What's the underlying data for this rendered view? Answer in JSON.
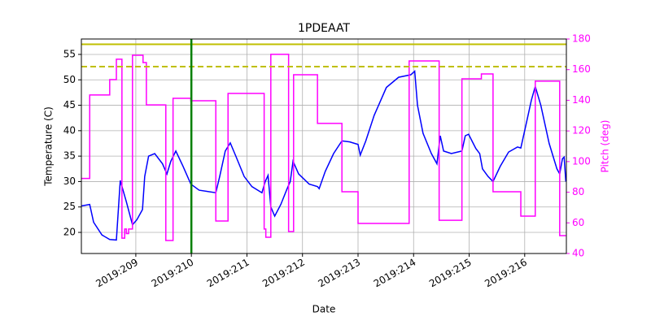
{
  "chart_data": {
    "type": "line",
    "title": "1PDEAAT",
    "x_label": "Date",
    "y_label": "Temperature (C)",
    "y2_label": "Pitch (deg)",
    "xlim": [
      208.02,
      216.75
    ],
    "xticks": [
      {
        "value": 209,
        "label": "2019:209"
      },
      {
        "value": 210,
        "label": "2019:210"
      },
      {
        "value": 211,
        "label": "2019:211"
      },
      {
        "value": 212,
        "label": "2019:212"
      },
      {
        "value": 213,
        "label": "2019:213"
      },
      {
        "value": 214,
        "label": "2019:214"
      },
      {
        "value": 215,
        "label": "2019:215"
      },
      {
        "value": 216,
        "label": "2019:216"
      }
    ],
    "ylim": [
      15.85,
      58.03
    ],
    "yticks": [
      20,
      25,
      30,
      35,
      40,
      45,
      50,
      55
    ],
    "y2lim": [
      40,
      180
    ],
    "y2ticks": [
      40,
      60,
      80,
      100,
      120,
      140,
      160,
      180
    ],
    "y2_color": "#ff00ff",
    "grid": true,
    "series": [
      {
        "color": "#0000ff",
        "x": [
          208.02,
          208.17,
          208.24,
          208.39,
          208.53,
          208.65,
          208.72,
          208.83,
          208.94,
          209.02,
          209.12,
          209.16,
          209.23,
          209.34,
          209.48,
          209.56,
          209.63,
          209.72,
          209.85,
          209.99,
          210.14,
          210.44,
          210.51,
          210.61,
          210.7,
          210.8,
          210.95,
          211.09,
          211.27,
          211.33,
          211.38,
          211.43,
          211.5,
          211.61,
          211.72,
          211.78,
          211.83,
          211.93,
          212.12,
          212.27,
          212.3,
          212.41,
          212.56,
          212.71,
          212.85,
          213.0,
          213.04,
          213.14,
          213.29,
          213.51,
          213.73,
          213.95,
          214.02,
          214.07,
          214.17,
          214.32,
          214.42,
          214.48,
          214.54,
          214.68,
          214.87,
          214.93,
          214.99,
          215.12,
          215.19,
          215.24,
          215.34,
          215.43,
          215.56,
          215.71,
          215.87,
          215.93,
          216.04,
          216.12,
          216.19,
          216.29,
          216.44,
          216.58,
          216.63,
          216.68,
          216.71,
          216.74
        ],
        "values": [
          25.2,
          25.5,
          22,
          19.5,
          18.6,
          18.5,
          30.2,
          26,
          21.5,
          22.5,
          24.5,
          31,
          35,
          35.5,
          33.5,
          31.5,
          34,
          36,
          33,
          29.5,
          28.3,
          27.8,
          31,
          36,
          37.6,
          35,
          31,
          29,
          27.8,
          30,
          31.2,
          25,
          23.2,
          25.5,
          28.5,
          30,
          34,
          31.5,
          29.5,
          29,
          28.6,
          32,
          35.5,
          38,
          37.8,
          37.3,
          35.2,
          38,
          43,
          48.5,
          50.5,
          51,
          51.7,
          45,
          39.5,
          35.5,
          33.5,
          39,
          36,
          35.5,
          36,
          39,
          39.3,
          36.5,
          35.5,
          32.5,
          31,
          30,
          33,
          35.8,
          36.8,
          36.6,
          42,
          46,
          48.7,
          45,
          37.5,
          32.5,
          31.5,
          34.5,
          34.8,
          30
        ]
      },
      {
        "color": "#ff00ff",
        "axis": "y2",
        "x": [
          208.02,
          208.17,
          208.17,
          208.53,
          208.53,
          208.65,
          208.65,
          208.75,
          208.75,
          208.8,
          208.8,
          208.83,
          208.83,
          208.87,
          208.87,
          208.94,
          208.94,
          209.13,
          209.13,
          209.19,
          209.19,
          209.54,
          209.54,
          209.67,
          209.67,
          209.99,
          209.99,
          210.44,
          210.44,
          210.66,
          210.66,
          211.31,
          211.31,
          211.34,
          211.34,
          211.43,
          211.43,
          211.46,
          211.46,
          211.75,
          211.75,
          211.84,
          211.84,
          212.27,
          212.27,
          212.71,
          212.71,
          213.0,
          213.0,
          213.92,
          213.92,
          214.46,
          214.46,
          214.87,
          214.87,
          215.22,
          215.22,
          215.43,
          215.43,
          215.93,
          215.93,
          216.19,
          216.19,
          216.63,
          216.63,
          216.74
        ],
        "values": [
          89,
          89,
          143.5,
          143.5,
          153.5,
          153.5,
          166.8,
          166.8,
          50,
          50,
          56,
          56,
          53,
          53,
          56,
          56,
          169.4,
          169.4,
          164.6,
          164.6,
          137,
          137,
          48.5,
          48.5,
          141.3,
          141.3,
          139.7,
          139.7,
          61.2,
          61.2,
          144.5,
          144.5,
          56,
          56,
          50.6,
          50.6,
          170,
          170,
          170,
          170,
          54.3,
          54.3,
          156.7,
          156.7,
          124.9,
          124.9,
          80.3,
          80.3,
          59.6,
          59.6,
          165.7,
          165.7,
          61.7,
          61.7,
          154,
          154,
          157.2,
          157.2,
          80.3,
          80.3,
          64.4,
          64.4,
          152.5,
          152.5,
          51.7,
          51.7
        ]
      }
    ],
    "hlines": [
      {
        "value": 57,
        "color": "#bfbf00",
        "style": "solid"
      },
      {
        "value": 52.6,
        "color": "#bfbf00",
        "style": "dashed"
      }
    ],
    "vlines": [
      {
        "value": 210.0,
        "color": "#008000"
      }
    ]
  }
}
